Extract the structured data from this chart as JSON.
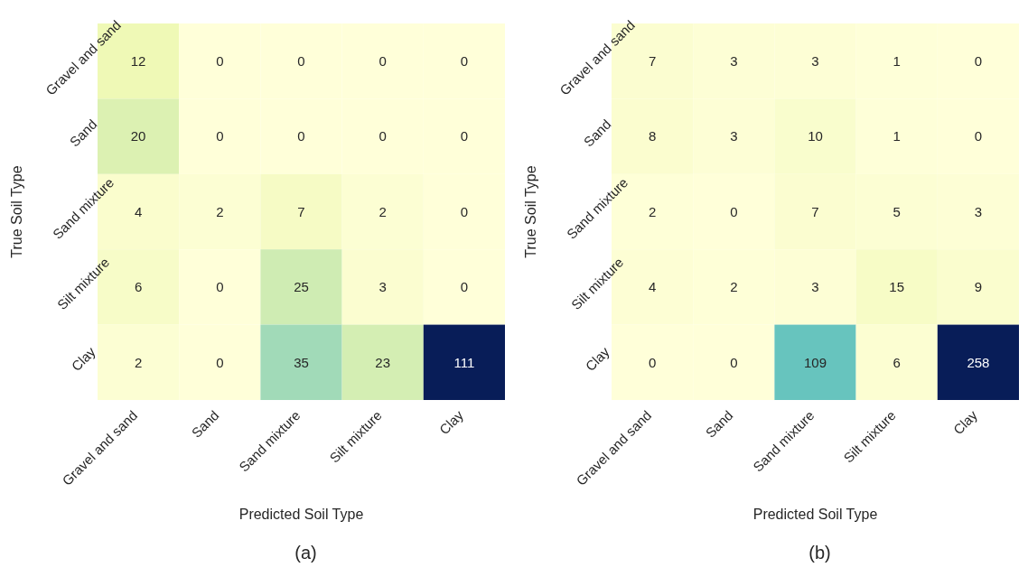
{
  "chart_data": [
    {
      "type": "heatmap",
      "xlabel": "Predicted Soil Type",
      "ylabel": "True Soil Type",
      "categories": [
        "Gravel and sand",
        "Sand",
        "Sand mixture",
        "Silt mixture",
        "Clay"
      ],
      "y_categories": [
        "Gravel and sand",
        "Sand",
        "Sand mixture",
        "Silt mixture",
        "Clay"
      ],
      "cells": [
        [
          12,
          0,
          0,
          0,
          0
        ],
        [
          20,
          0,
          0,
          0,
          0
        ],
        [
          4,
          2,
          7,
          2,
          0
        ],
        [
          6,
          0,
          25,
          3,
          0
        ],
        [
          2,
          0,
          35,
          23,
          111
        ]
      ],
      "data_labels": true,
      "annotations": [
        "(a)"
      ]
    },
    {
      "type": "heatmap",
      "xlabel": "Predicted Soil Type",
      "ylabel": "True Soil Type",
      "categories": [
        "Gravel and sand",
        "Sand",
        "Sand mixture",
        "Silt mixture",
        "Clay"
      ],
      "y_categories": [
        "Gravel and sand",
        "Sand",
        "Sand mixture",
        "Silt mixture",
        "Clay"
      ],
      "cells": [
        [
          7,
          3,
          3,
          1,
          0
        ],
        [
          8,
          3,
          10,
          1,
          0
        ],
        [
          2,
          0,
          7,
          5,
          3
        ],
        [
          4,
          2,
          3,
          15,
          9
        ],
        [
          0,
          0,
          109,
          6,
          258
        ]
      ],
      "data_labels": true,
      "annotations": [
        "(b)"
      ]
    }
  ]
}
